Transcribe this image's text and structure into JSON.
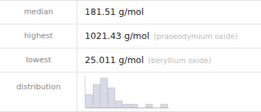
{
  "chart_data": [
    {
      "type": "table",
      "categories": [
        "median",
        "highest",
        "lowest"
      ],
      "values": [
        "181.51 g/mol",
        "1021.43 g/mol",
        "25.011 g/mol"
      ],
      "notes": [
        null,
        "(praseodymium oxide)",
        "(beryllium oxide)"
      ]
    },
    {
      "type": "bar",
      "title": "distribution",
      "categories": [
        null,
        null,
        null,
        null,
        null,
        null,
        null,
        null,
        null,
        null,
        null
      ],
      "values": [
        4,
        7,
        9,
        6,
        2,
        1,
        1,
        0,
        1,
        0,
        1
      ],
      "color": "#d8daea",
      "ylim": [
        0,
        9.72
      ],
      "tick_labels": false
    }
  ]
}
